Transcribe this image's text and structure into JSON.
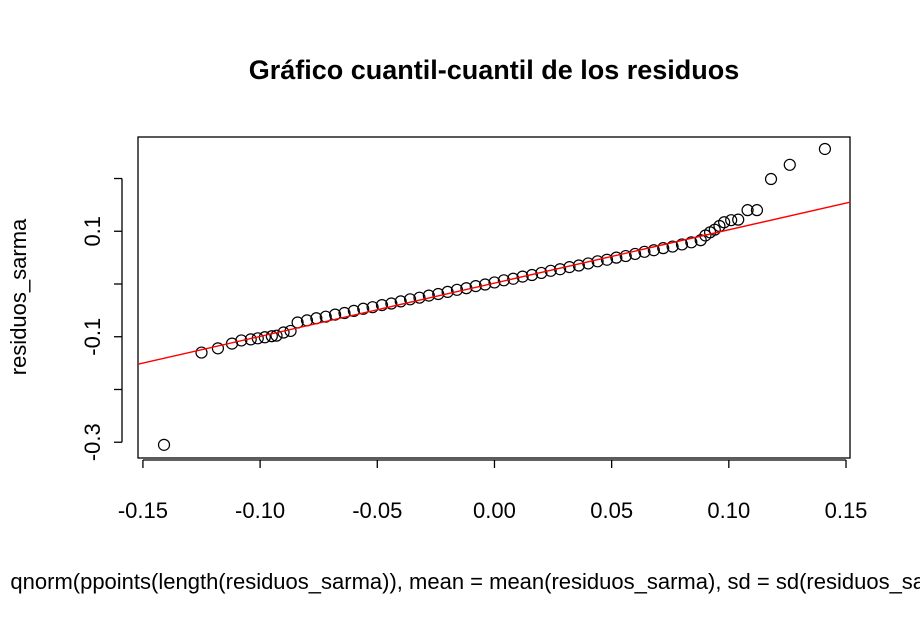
{
  "chart_data": {
    "type": "scatter",
    "title": "Gráfico cuantil-cuantil de los residuos",
    "xlabel": "qnorm(ppoints(length(residuos_sarma)), mean = mean(residuos_sarma), sd = sd(residuos_sarma))",
    "ylabel": "residuos_sarma",
    "xlim": [
      -0.1521,
      0.1517
    ],
    "ylim": [
      -0.3299,
      0.2787
    ],
    "xticks": [
      {
        "value": -0.15,
        "label": "-0.15"
      },
      {
        "value": -0.1,
        "label": "-0.10"
      },
      {
        "value": -0.05,
        "label": "-0.05"
      },
      {
        "value": 0,
        "label": "0.00"
      },
      {
        "value": 0.05,
        "label": "0.05"
      },
      {
        "value": 0.1,
        "label": "0.10"
      },
      {
        "value": 0.15,
        "label": "0.15"
      }
    ],
    "yticks": [
      -0.3,
      {
        "value": -0.2,
        "label": null
      },
      -0.1,
      {
        "value": 0,
        "label": null
      },
      0.1,
      {
        "value": 0.2,
        "label": null
      }
    ],
    "point_color": "#000000",
    "x": [
      -0.141,
      -0.125,
      -0.118,
      -0.112,
      -0.108,
      -0.104,
      -0.101,
      -0.098,
      -0.095,
      -0.093,
      -0.09,
      -0.087,
      -0.084,
      -0.08,
      -0.076,
      -0.072,
      -0.068,
      -0.064,
      -0.06,
      -0.056,
      -0.052,
      -0.048,
      -0.044,
      -0.04,
      -0.036,
      -0.032,
      -0.028,
      -0.024,
      -0.02,
      -0.016,
      -0.012,
      -0.008,
      -0.004,
      0.0,
      0.004,
      0.008,
      0.012,
      0.016,
      0.02,
      0.024,
      0.028,
      0.032,
      0.036,
      0.04,
      0.044,
      0.048,
      0.052,
      0.056,
      0.06,
      0.064,
      0.068,
      0.072,
      0.076,
      0.08,
      0.084,
      0.088,
      0.09,
      0.092,
      0.094,
      0.096,
      0.098,
      0.101,
      0.104,
      0.108,
      0.112,
      0.118,
      0.126,
      0.141
    ],
    "values": [
      -0.305,
      -0.13,
      -0.122,
      -0.113,
      -0.107,
      -0.105,
      -0.103,
      -0.101,
      -0.099,
      -0.098,
      -0.092,
      -0.089,
      -0.073,
      -0.069,
      -0.065,
      -0.062,
      -0.058,
      -0.055,
      -0.051,
      -0.047,
      -0.044,
      -0.04,
      -0.037,
      -0.033,
      -0.029,
      -0.026,
      -0.022,
      -0.019,
      -0.015,
      -0.011,
      -0.008,
      -0.004,
      -0.001,
      0.003,
      0.007,
      0.01,
      0.014,
      0.017,
      0.021,
      0.025,
      0.028,
      0.032,
      0.035,
      0.039,
      0.043,
      0.046,
      0.05,
      0.053,
      0.057,
      0.061,
      0.064,
      0.068,
      0.071,
      0.075,
      0.079,
      0.083,
      0.092,
      0.098,
      0.103,
      0.11,
      0.117,
      0.121,
      0.122,
      0.14,
      0.14,
      0.199,
      0.226,
      0.256
    ],
    "reference_line": {
      "color": "#ff0000",
      "x": [
        -0.1521,
        0.1517
      ],
      "y": [
        -0.152,
        0.155
      ]
    }
  }
}
